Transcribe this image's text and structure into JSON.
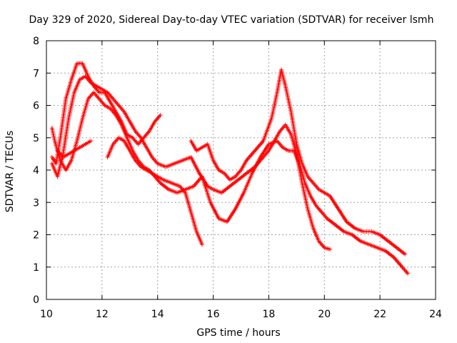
{
  "chart_data": {
    "type": "scatter",
    "title": "Day 329 of 2020, Sidereal Day-to-day VTEC variation (SDTVAR) for receiver lsmh",
    "xlabel": "GPS time / hours",
    "ylabel": "SDTVAR / TECUs",
    "xlim": [
      10,
      24
    ],
    "ylim": [
      0,
      8
    ],
    "xticks": [
      "10",
      "12",
      "14",
      "16",
      "18",
      "20",
      "22",
      "24"
    ],
    "yticks": [
      "0",
      "1",
      "2",
      "3",
      "4",
      "5",
      "6",
      "7",
      "8"
    ],
    "grid": true,
    "marker": "+",
    "color": "#ff0000",
    "series": [
      {
        "name": "trace-1",
        "x": [
          10.2,
          10.35,
          10.5,
          10.7,
          10.9,
          11.1,
          11.3,
          11.5,
          11.7,
          11.9,
          12.1,
          12.3,
          12.5,
          12.7,
          12.9,
          13.1,
          13.3,
          13.5,
          13.7,
          13.9,
          14.1
        ],
        "y": [
          4.4,
          4.2,
          5.0,
          6.2,
          6.8,
          7.3,
          7.3,
          6.9,
          6.6,
          6.4,
          6.4,
          6.1,
          5.8,
          5.5,
          5.1,
          5.0,
          4.8,
          5.0,
          5.2,
          5.5,
          5.7
        ]
      },
      {
        "name": "trace-2",
        "x": [
          10.2,
          10.4,
          10.6,
          10.8,
          11.0,
          11.2,
          11.4,
          11.6,
          11.8,
          12.0,
          12.2,
          12.4,
          12.6,
          12.8,
          13.0,
          13.2,
          13.4,
          13.6,
          13.8,
          14.0,
          14.3,
          14.6,
          14.9,
          15.2,
          15.5,
          15.8,
          16.0,
          16.3,
          16.6,
          16.9,
          17.2,
          17.5,
          17.8,
          18.0,
          18.2,
          18.4,
          18.6,
          18.8,
          19.0,
          19.2,
          19.4,
          19.6,
          19.8,
          20.0,
          20.2
        ],
        "y": [
          4.2,
          3.8,
          4.5,
          5.6,
          6.4,
          6.8,
          6.9,
          6.7,
          6.6,
          6.5,
          6.4,
          6.2,
          6.0,
          5.8,
          5.5,
          5.2,
          5.0,
          4.7,
          4.4,
          4.2,
          4.1,
          4.2,
          4.3,
          4.4,
          3.9,
          3.5,
          3.4,
          3.3,
          3.5,
          3.7,
          3.9,
          4.1,
          4.4,
          4.6,
          4.9,
          5.2,
          5.4,
          5.1,
          4.5,
          3.6,
          2.8,
          2.2,
          1.8,
          1.6,
          1.55
        ]
      },
      {
        "name": "trace-3",
        "x": [
          10.2,
          10.3,
          10.5,
          10.7,
          10.9,
          11.1,
          11.3,
          11.5,
          11.7,
          11.9,
          12.1,
          12.3,
          12.5,
          12.7,
          12.9,
          13.1,
          13.3,
          13.5,
          13.7,
          13.9,
          14.1,
          14.4,
          14.7,
          15.0,
          15.3,
          15.6,
          15.9,
          16.2,
          16.5,
          16.8,
          17.1,
          17.4,
          17.7,
          18.0,
          18.3,
          18.5,
          18.7,
          18.9,
          19.1,
          19.3,
          19.5,
          19.7,
          19.9,
          20.1,
          20.4,
          20.7,
          21.0,
          21.3,
          21.6,
          21.9,
          22.2,
          22.5,
          22.8,
          23.0
        ],
        "y": [
          5.3,
          4.9,
          4.3,
          4.0,
          4.3,
          4.9,
          5.6,
          6.2,
          6.4,
          6.2,
          6.0,
          5.9,
          5.7,
          5.4,
          5.0,
          4.6,
          4.3,
          4.1,
          4.0,
          3.8,
          3.6,
          3.4,
          3.3,
          3.4,
          3.5,
          3.8,
          3.0,
          2.5,
          2.4,
          2.8,
          3.3,
          3.9,
          4.4,
          4.8,
          4.9,
          4.7,
          4.6,
          4.6,
          4.2,
          3.6,
          3.2,
          2.9,
          2.7,
          2.5,
          2.3,
          2.1,
          2.0,
          1.8,
          1.7,
          1.6,
          1.5,
          1.3,
          1.0,
          0.8
        ]
      },
      {
        "name": "trace-4",
        "x": [
          12.2,
          12.4,
          12.6,
          12.8,
          13.0,
          13.2,
          13.4,
          13.6,
          13.8,
          14.0,
          14.2,
          14.5,
          14.8,
          15.0,
          15.2,
          15.4,
          15.6
        ],
        "y": [
          4.4,
          4.8,
          5.0,
          4.9,
          4.6,
          4.3,
          4.1,
          4.0,
          3.9,
          3.8,
          3.7,
          3.6,
          3.5,
          3.3,
          2.7,
          2.1,
          1.7
        ]
      },
      {
        "name": "trace-5",
        "x": [
          15.2,
          15.4,
          15.6,
          15.8,
          16.0,
          16.2,
          16.4,
          16.6,
          16.8,
          17.0,
          17.2,
          17.5,
          17.8,
          18.1,
          18.3,
          18.45,
          18.6,
          18.8,
          19.0,
          19.2,
          19.4,
          19.6,
          19.8,
          20.0,
          20.2,
          20.5,
          20.8,
          21.1,
          21.4,
          21.7,
          22.0,
          22.3,
          22.6,
          22.9
        ],
        "y": [
          4.9,
          4.6,
          4.7,
          4.8,
          4.3,
          4.0,
          3.9,
          3.7,
          3.8,
          4.0,
          4.3,
          4.6,
          4.9,
          5.6,
          6.4,
          7.1,
          6.6,
          5.8,
          4.8,
          4.2,
          3.8,
          3.6,
          3.4,
          3.3,
          3.2,
          2.8,
          2.4,
          2.2,
          2.1,
          2.1,
          2.0,
          1.8,
          1.6,
          1.4
        ]
      },
      {
        "name": "trace-6",
        "x": [
          10.4,
          10.6,
          10.8,
          11.0,
          11.2,
          11.4,
          11.6
        ],
        "y": [
          4.6,
          4.4,
          4.5,
          4.6,
          4.7,
          4.8,
          4.9
        ]
      }
    ]
  }
}
